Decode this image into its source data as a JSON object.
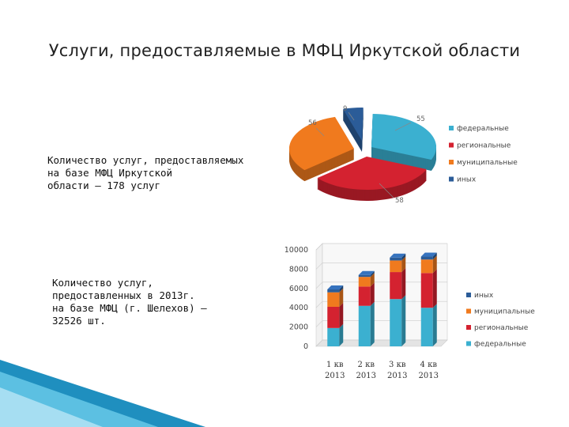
{
  "title": "Услуги, предоставляемые в МФЦ Иркутской области",
  "caption_pie": "Количество услуг, предоставляемых\nна базе МФЦ Иркутской\nобласти – 178 услуг",
  "caption_bar": "Количество услуг,\nпредоставленных в 2013г.\nна базе МФЦ (г. Шелехов) –\n32526 шт.",
  "colors": {
    "federal": "#3bb0d0",
    "regional": "#d42230",
    "municipal": "#f07a1e",
    "other": "#2b5c98"
  },
  "chart_data": [
    {
      "type": "pie",
      "slices": [
        {
          "label": "федеральные",
          "value": 55,
          "color": "#3bb0d0"
        },
        {
          "label": "региональные",
          "value": 58,
          "color": "#d42230"
        },
        {
          "label": "муниципальные",
          "value": 56,
          "color": "#f07a1e"
        },
        {
          "label": "иных",
          "value": 9,
          "color": "#2b5c98"
        }
      ],
      "legend": [
        "федеральные",
        "региональные",
        "муниципальные",
        "иных"
      ],
      "legend_position": "right"
    },
    {
      "type": "bar",
      "stacked": true,
      "categories": [
        "1 кв 2013",
        "2 кв 2013",
        "3 кв 2013",
        "4 кв 2013"
      ],
      "series": [
        {
          "name": "федеральные",
          "values": [
            1900,
            4200,
            4900,
            4000
          ],
          "color": "#3bb0d0"
        },
        {
          "name": "региональные",
          "values": [
            2200,
            2000,
            2800,
            3600
          ],
          "color": "#d42230"
        },
        {
          "name": "муниципальные",
          "values": [
            1500,
            1000,
            1200,
            1400
          ],
          "color": "#f07a1e"
        },
        {
          "name": "иных",
          "values": [
            300,
            200,
            300,
            300
          ],
          "color": "#2b5c98"
        }
      ],
      "yticks": [
        "0",
        "2000",
        "4000",
        "6000",
        "8000",
        "10000"
      ],
      "ylim": [
        0,
        10000
      ],
      "legend": [
        "иных",
        "муниципальные",
        "региональные",
        "федеральные"
      ],
      "legend_position": "right"
    }
  ]
}
